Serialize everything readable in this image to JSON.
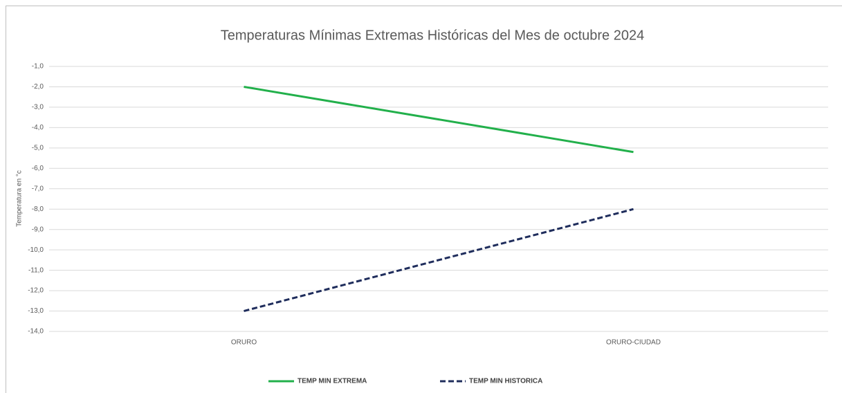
{
  "chart_data": {
    "type": "line",
    "title": "Temperaturas Mínimas Extremas Históricas del Mes de octubre 2024",
    "y_label": "Temperatura en °c",
    "categories": [
      "ORURO",
      "ORURO-CIUDAD"
    ],
    "series": [
      {
        "name": "TEMP MIN EXTREMA",
        "color": "#22b04b",
        "dash": false,
        "values": [
          -2.0,
          -5.2
        ]
      },
      {
        "name": "TEMP MIN HISTORICA",
        "color": "#1f2d5c",
        "dash": true,
        "values": [
          -13.0,
          -8.0
        ]
      }
    ],
    "ylim": [
      -14,
      -1
    ],
    "yticks": [
      {
        "value": -1,
        "label": "-1,0"
      },
      {
        "value": -2,
        "label": "-2,0"
      },
      {
        "value": -3,
        "label": "-3,0"
      },
      {
        "value": -4,
        "label": "-4,0"
      },
      {
        "value": -5,
        "label": "-5,0"
      },
      {
        "value": -6,
        "label": "-6,0"
      },
      {
        "value": -7,
        "label": "-7,0"
      },
      {
        "value": -8,
        "label": "-8,0"
      },
      {
        "value": -9,
        "label": "-9,0"
      },
      {
        "value": -10,
        "label": "-10,0"
      },
      {
        "value": -11,
        "label": "-11,0"
      },
      {
        "value": -12,
        "label": "-12,0"
      },
      {
        "value": -13,
        "label": "-13,0"
      },
      {
        "value": -14,
        "label": "-14,0"
      }
    ],
    "grid": true,
    "legend": "bottom"
  }
}
